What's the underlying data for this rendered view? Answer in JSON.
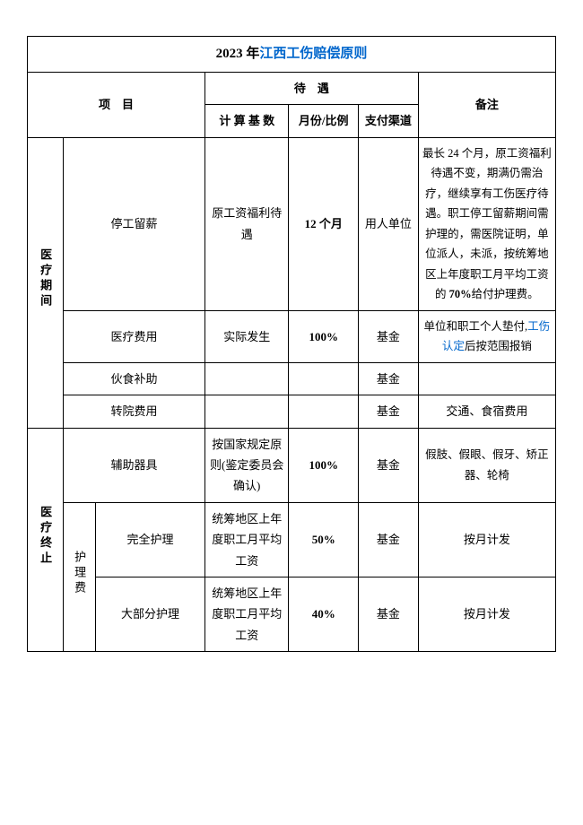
{
  "title_prefix": "2023 年",
  "title_link": "江西工伤赔偿原则",
  "headers": {
    "item": "项　目",
    "treatment": "待　遇",
    "base": "计 算 基 数",
    "ratio": "月份/比例",
    "channel": "支付渠道",
    "remark": "备注"
  },
  "cat": {
    "medical_period": "医疗期间",
    "medical_end": "医疗终止",
    "nursing_fee": "护理费"
  },
  "rows": {
    "stop_work": {
      "name": "停工留薪",
      "base": "原工资福利待遇",
      "ratio": "12 个月",
      "channel": "用人单位",
      "remark_a": "最长 24 个月，原工资福利待遇不变，期满仍需治疗，继续享有工伤医疗待遇。职工停工留薪期间需护理的，需医院证明，单位派人，未派，按统筹地区上年度职工月平均工资的 ",
      "remark_b": "70%",
      "remark_c": "给付护理费。"
    },
    "medical_fee": {
      "name": "医疗费用",
      "base": "实际发生",
      "ratio": "100%",
      "channel": "基金",
      "remark_a": "单位和职工个人垫付,",
      "remark_link": "工伤认定",
      "remark_b": "后按范围报销"
    },
    "food": {
      "name": "伙食补助",
      "base": "",
      "ratio": "",
      "channel": "基金",
      "remark": ""
    },
    "transfer": {
      "name": "转院费用",
      "base": "",
      "ratio": "",
      "channel": "基金",
      "remark": "交通、食宿费用"
    },
    "device": {
      "name": "辅助器具",
      "base": "按国家规定原则(鉴定委员会确认)",
      "ratio": "100%",
      "channel": "基金",
      "remark": "假肢、假眼、假牙、矫正器、轮椅"
    },
    "full_care": {
      "name": "完全护理",
      "base": "统筹地区上年度职工月平均工资",
      "ratio": "50%",
      "channel": "基金",
      "remark": "按月计发"
    },
    "most_care": {
      "name": "大部分护理",
      "base": "统筹地区上年度职工月平均工资",
      "ratio": "40%",
      "channel": "基金",
      "remark": "按月计发"
    }
  }
}
